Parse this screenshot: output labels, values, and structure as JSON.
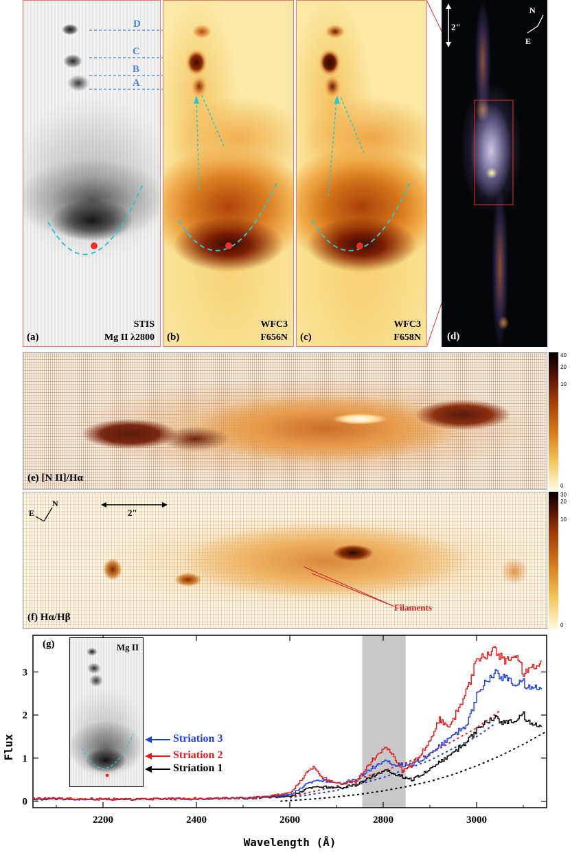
{
  "colors": {
    "frame_red": "#e8796a",
    "knot_blue": "#4a7fd9",
    "dash_cyan": "#2fc6cc",
    "ratio_dark": "#5a1a0a",
    "striation1": "#000000",
    "striation2": "#e31a1c",
    "striation3": "#1f3fd6",
    "model": "#000000",
    "shade": "#c8c8c8",
    "filament": "#d62020"
  },
  "panels": {
    "a": {
      "label": "(a)",
      "instr1": "STIS",
      "instr2": "Mg II λ2800",
      "knots": [
        "D",
        "C",
        "B",
        "A"
      ]
    },
    "b": {
      "label": "(b)",
      "instr1": "WFC3",
      "instr2": "F656N"
    },
    "c": {
      "label": "(c)",
      "instr1": "WFC3",
      "instr2": "F658N"
    },
    "d": {
      "label": "(d)",
      "scale": "2\"",
      "compass_n": "N",
      "compass_e": "E"
    },
    "e": {
      "label": "(e)  [N II]/Hα",
      "colorbar_ticks": [
        "40",
        "20",
        "10",
        "0"
      ]
    },
    "f": {
      "label": "(f)  Hα/Hβ",
      "scale": "2\"",
      "compass_n": "N",
      "compass_e": "E",
      "colorbar_ticks": [
        "30",
        "20",
        "10",
        "0"
      ],
      "annotation": "Filaments"
    },
    "g": {
      "label": "(g)",
      "inset_label": "Mg II"
    }
  },
  "chart_data": {
    "type": "line",
    "title": "",
    "xlabel": "Wavelength (Å)",
    "ylabel": "Flux",
    "xlim": [
      2050,
      3150
    ],
    "ylim": [
      -0.15,
      3.85
    ],
    "xticks": [
      2200,
      2400,
      2600,
      2800,
      3000
    ],
    "yticks": [
      0,
      1,
      2,
      3
    ],
    "shaded_band": [
      2755,
      2848
    ],
    "legend": [
      "Striation 3",
      "Striation 2",
      "Striation 1"
    ],
    "series": [
      {
        "name": "Striation 1",
        "style": "step",
        "x": [
          2050,
          2150,
          2250,
          2350,
          2450,
          2550,
          2600,
          2640,
          2660,
          2700,
          2740,
          2780,
          2800,
          2820,
          2860,
          2900,
          2940,
          2980,
          3000,
          3020,
          3040,
          3060,
          3080,
          3100,
          3120,
          3140
        ],
        "y": [
          0.05,
          0.05,
          0.04,
          0.05,
          0.06,
          0.08,
          0.12,
          0.3,
          0.35,
          0.3,
          0.38,
          0.6,
          0.72,
          0.65,
          0.5,
          0.75,
          1.05,
          1.4,
          1.65,
          1.85,
          1.95,
          1.8,
          1.85,
          2.0,
          1.75,
          1.8
        ]
      },
      {
        "name": "Striation 2",
        "style": "step",
        "x": [
          2050,
          2150,
          2250,
          2350,
          2450,
          2550,
          2600,
          2640,
          2650,
          2670,
          2700,
          2740,
          2780,
          2800,
          2820,
          2840,
          2860,
          2900,
          2920,
          2940,
          2980,
          3000,
          3020,
          3040,
          3060,
          3080,
          3100,
          3120,
          3140
        ],
        "y": [
          0.07,
          0.06,
          0.05,
          0.06,
          0.07,
          0.1,
          0.2,
          0.7,
          0.8,
          0.55,
          0.4,
          0.45,
          1.0,
          1.25,
          1.1,
          0.7,
          0.85,
          1.4,
          1.9,
          1.7,
          2.6,
          3.3,
          3.4,
          3.55,
          3.2,
          3.4,
          3.0,
          3.1,
          3.3
        ]
      },
      {
        "name": "Striation 3",
        "style": "step",
        "x": [
          2050,
          2150,
          2250,
          2350,
          2450,
          2550,
          2600,
          2640,
          2660,
          2690,
          2700,
          2740,
          2780,
          2800,
          2820,
          2860,
          2900,
          2940,
          2980,
          3000,
          3020,
          3040,
          3060,
          3080,
          3100,
          3120,
          3140
        ],
        "y": [
          0.06,
          0.05,
          0.05,
          0.05,
          0.06,
          0.09,
          0.16,
          0.42,
          0.5,
          0.45,
          0.4,
          0.5,
          0.8,
          0.95,
          0.85,
          0.85,
          1.1,
          1.45,
          1.8,
          2.45,
          2.8,
          3.0,
          2.85,
          2.7,
          2.75,
          2.6,
          2.7
        ]
      },
      {
        "name": "model",
        "style": "dotted",
        "x": [
          2580,
          2650,
          2700,
          2750,
          2800,
          2850,
          2900,
          2950,
          3000,
          3050,
          3100,
          3150
        ],
        "y": [
          0.0,
          0.05,
          0.1,
          0.16,
          0.24,
          0.34,
          0.46,
          0.62,
          0.82,
          1.05,
          1.32,
          1.62
        ]
      },
      {
        "name": "Striation 2 continuum",
        "style": "dotted",
        "x": [
          2600,
          2700,
          2800,
          2900,
          3000,
          3050
        ],
        "y": [
          0.1,
          0.35,
          0.7,
          1.1,
          1.7,
          2.1
        ]
      },
      {
        "name": "Striation 3 continuum",
        "style": "dotted",
        "x": [
          2600,
          2700,
          2800,
          2900,
          3000,
          3040
        ],
        "y": [
          0.08,
          0.25,
          0.55,
          0.95,
          1.5,
          1.8
        ]
      }
    ]
  }
}
